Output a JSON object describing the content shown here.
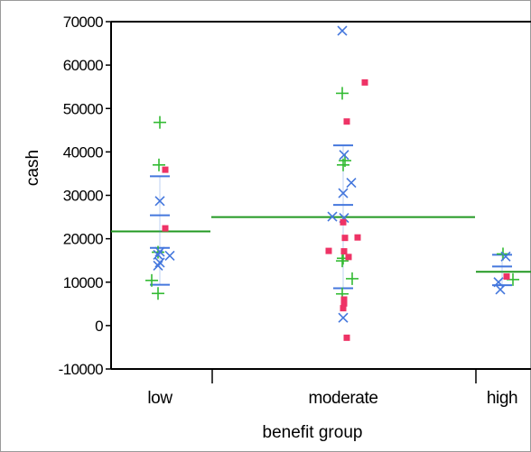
{
  "chart_data": {
    "type": "scatter",
    "title": "",
    "xlabel": "benefit group",
    "ylabel": "cash",
    "categories": [
      "low",
      "moderate",
      "high"
    ],
    "ylim": [
      -10000,
      70000
    ],
    "yticks": [
      "70000",
      "60000",
      "50000",
      "40000",
      "30000",
      "20000",
      "10000",
      "0",
      "-10000"
    ],
    "grid": false,
    "legend": "none",
    "colors": {
      "plus": "#33bb33",
      "cross": "#4477dd",
      "square": "#ee3366",
      "mean_line": "#229922",
      "quantile": "#4477dd",
      "axis": "#000000"
    },
    "group_means": [
      {
        "category": "low",
        "value": 21700
      },
      {
        "category": "moderate",
        "value": 25000
      },
      {
        "category": "high",
        "value": 12400
      }
    ],
    "quantile_ticks": [
      {
        "category": "low",
        "values": [
          9400,
          17900,
          25400,
          34400
        ]
      },
      {
        "category": "moderate",
        "values": [
          8600,
          27800,
          41500
        ]
      },
      {
        "category": "high",
        "values": [
          9300,
          13600,
          16300
        ]
      }
    ],
    "series": [
      {
        "marker": "plus",
        "points": [
          {
            "category": "low",
            "offset": 0.0,
            "y": 46800
          },
          {
            "category": "low",
            "offset": -0.01,
            "y": 37000
          },
          {
            "category": "low",
            "offset": -0.02,
            "y": 16900
          },
          {
            "category": "low",
            "offset": -0.09,
            "y": 10400
          },
          {
            "category": "low",
            "offset": -0.02,
            "y": 7400
          },
          {
            "category": "moderate",
            "offset": -0.01,
            "y": 53500
          },
          {
            "category": "moderate",
            "offset": 0.02,
            "y": 38000
          },
          {
            "category": "moderate",
            "offset": 0.0,
            "y": 37000
          },
          {
            "category": "moderate",
            "offset": 0.0,
            "y": 15500
          },
          {
            "category": "moderate",
            "offset": -0.01,
            "y": 14900
          },
          {
            "category": "moderate",
            "offset": 0.1,
            "y": 10800
          },
          {
            "category": "moderate",
            "offset": -0.01,
            "y": 7300
          },
          {
            "category": "high",
            "offset": 0.01,
            "y": 16500
          },
          {
            "category": "high",
            "offset": 0.12,
            "y": 10600
          }
        ]
      },
      {
        "marker": "cross",
        "points": [
          {
            "category": "low",
            "offset": 0.0,
            "y": 28700
          },
          {
            "category": "low",
            "offset": 0.0,
            "y": 17000
          },
          {
            "category": "low",
            "offset": -0.02,
            "y": 16300
          },
          {
            "category": "low",
            "offset": 0.11,
            "y": 16100
          },
          {
            "category": "low",
            "offset": 0.0,
            "y": 14500
          },
          {
            "category": "low",
            "offset": -0.02,
            "y": 13800
          },
          {
            "category": "moderate",
            "offset": -0.01,
            "y": 67900
          },
          {
            "category": "moderate",
            "offset": 0.01,
            "y": 39300
          },
          {
            "category": "moderate",
            "offset": 0.09,
            "y": 32900
          },
          {
            "category": "moderate",
            "offset": 0.0,
            "y": 30500
          },
          {
            "category": "moderate",
            "offset": -0.12,
            "y": 25100
          },
          {
            "category": "moderate",
            "offset": 0.01,
            "y": 24800
          },
          {
            "category": "moderate",
            "offset": 0.0,
            "y": 1800
          },
          {
            "category": "high",
            "offset": 0.04,
            "y": 15900
          },
          {
            "category": "high",
            "offset": -0.04,
            "y": 10000
          },
          {
            "category": "high",
            "offset": -0.02,
            "y": 8300
          }
        ]
      },
      {
        "marker": "square",
        "points": [
          {
            "category": "low",
            "offset": 0.06,
            "y": 35900
          },
          {
            "category": "low",
            "offset": 0.06,
            "y": 22400
          },
          {
            "category": "moderate",
            "offset": 0.24,
            "y": 56000
          },
          {
            "category": "moderate",
            "offset": 0.04,
            "y": 47000
          },
          {
            "category": "moderate",
            "offset": 0.0,
            "y": 23800
          },
          {
            "category": "moderate",
            "offset": 0.16,
            "y": 20300
          },
          {
            "category": "moderate",
            "offset": 0.02,
            "y": 20200
          },
          {
            "category": "moderate",
            "offset": -0.16,
            "y": 17200
          },
          {
            "category": "moderate",
            "offset": 0.01,
            "y": 17100
          },
          {
            "category": "moderate",
            "offset": 0.06,
            "y": 15800
          },
          {
            "category": "moderate",
            "offset": 0.01,
            "y": 6000
          },
          {
            "category": "moderate",
            "offset": 0.01,
            "y": 5100
          },
          {
            "category": "moderate",
            "offset": 0.0,
            "y": 4000
          },
          {
            "category": "moderate",
            "offset": 0.04,
            "y": -2800
          },
          {
            "category": "high",
            "offset": 0.05,
            "y": 11300
          }
        ]
      }
    ]
  }
}
